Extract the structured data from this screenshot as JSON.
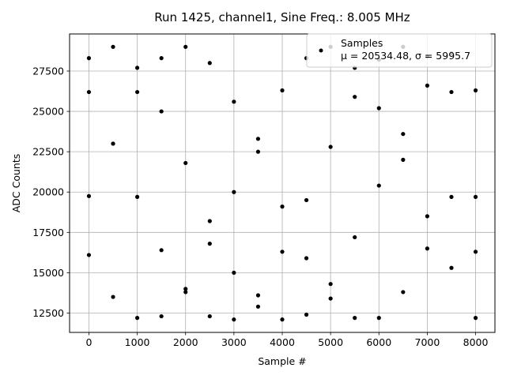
{
  "chart_data": {
    "type": "scatter",
    "title": "Run 1425, channel1, Sine Freq.: 8.005 MHz",
    "xlabel": "Sample #",
    "ylabel": "ADC Counts",
    "xlim": [
      -400,
      8400
    ],
    "ylim": [
      11300,
      29800
    ],
    "xticks": [
      0,
      1000,
      2000,
      3000,
      4000,
      5000,
      6000,
      7000,
      8000
    ],
    "xtick_labels": [
      "0",
      "1000",
      "2000",
      "3000",
      "4000",
      "5000",
      "6000",
      "7000",
      "8000"
    ],
    "yticks": [
      12500,
      15000,
      17500,
      20000,
      22500,
      25000,
      27500
    ],
    "ytick_labels": [
      "12500",
      "15000",
      "17500",
      "20000",
      "22500",
      "25000",
      "27500"
    ],
    "grid": true,
    "legend": {
      "placement": "top-right",
      "series_name": "Samples",
      "stats": "μ = 20534.48, σ = 5995.7"
    },
    "marker_color": "#000000",
    "series": [
      {
        "name": "Samples",
        "points": [
          {
            "x": 0,
            "y": 19750
          },
          {
            "x": 500,
            "y": 23000
          },
          {
            "x": 1000,
            "y": 26200
          },
          {
            "x": 1500,
            "y": 28300
          },
          {
            "x": 2000,
            "y": 29000
          },
          {
            "x": 2500,
            "y": 28000
          },
          {
            "x": 3000,
            "y": 25600
          },
          {
            "x": 3500,
            "y": 22500
          },
          {
            "x": 4000,
            "y": 19100
          },
          {
            "x": 4500,
            "y": 15900
          },
          {
            "x": 5000,
            "y": 13400
          },
          {
            "x": 5500,
            "y": 12200
          },
          {
            "x": 6000,
            "y": 12200
          },
          {
            "x": 6500,
            "y": 13800
          },
          {
            "x": 7000,
            "y": 16500
          },
          {
            "x": 7500,
            "y": 19700
          },
          {
            "x": 8000,
            "y": 19700
          },
          {
            "x": 0,
            "y": 28300
          },
          {
            "x": 500,
            "y": 29000
          },
          {
            "x": 1000,
            "y": 27700
          },
          {
            "x": 1500,
            "y": 25000
          },
          {
            "x": 2000,
            "y": 21800
          },
          {
            "x": 2500,
            "y": 18200
          },
          {
            "x": 3000,
            "y": 15000
          },
          {
            "x": 3500,
            "y": 12900
          },
          {
            "x": 4000,
            "y": 12100
          },
          {
            "x": 4500,
            "y": 12400
          },
          {
            "x": 5000,
            "y": 14300
          },
          {
            "x": 5500,
            "y": 17200
          },
          {
            "x": 6000,
            "y": 20400
          },
          {
            "x": 6500,
            "y": 23600
          },
          {
            "x": 7000,
            "y": 26600
          },
          {
            "x": 7500,
            "y": 28600
          },
          {
            "x": 8000,
            "y": 26300
          },
          {
            "x": 0,
            "y": 26200
          },
          {
            "x": 500,
            "y": 23000
          },
          {
            "x": 1000,
            "y": 19700
          },
          {
            "x": 1500,
            "y": 16400
          },
          {
            "x": 2000,
            "y": 13800
          },
          {
            "x": 2500,
            "y": 12300
          },
          {
            "x": 3000,
            "y": 12100
          },
          {
            "x": 3500,
            "y": 13600
          },
          {
            "x": 4000,
            "y": 16300
          },
          {
            "x": 4500,
            "y": 19500
          },
          {
            "x": 5000,
            "y": 22800
          },
          {
            "x": 5500,
            "y": 25900
          },
          {
            "x": 6000,
            "y": 28200
          },
          {
            "x": 6500,
            "y": 29000
          },
          {
            "x": 7000,
            "y": 28400
          },
          {
            "x": 7500,
            "y": 26200
          },
          {
            "x": 8000,
            "y": 16300
          },
          {
            "x": 0,
            "y": 16100
          },
          {
            "x": 500,
            "y": 13500
          },
          {
            "x": 1000,
            "y": 12200
          },
          {
            "x": 1500,
            "y": 12300
          },
          {
            "x": 2000,
            "y": 14000
          },
          {
            "x": 2500,
            "y": 16800
          },
          {
            "x": 3000,
            "y": 20000
          },
          {
            "x": 3500,
            "y": 23300
          },
          {
            "x": 4000,
            "y": 26300
          },
          {
            "x": 4500,
            "y": 28300
          },
          {
            "x": 5000,
            "y": 29000
          },
          {
            "x": 5500,
            "y": 27700
          },
          {
            "x": 6000,
            "y": 25200
          },
          {
            "x": 6500,
            "y": 22000
          },
          {
            "x": 7000,
            "y": 18500
          },
          {
            "x": 7500,
            "y": 15300
          },
          {
            "x": 8000,
            "y": 12200
          }
        ]
      }
    ]
  }
}
